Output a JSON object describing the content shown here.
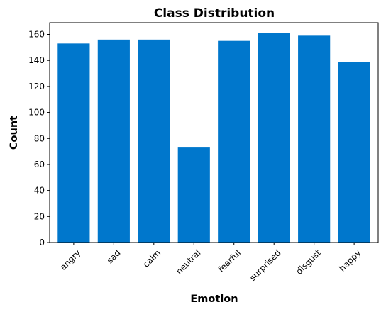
{
  "chart_data": {
    "type": "bar",
    "title": "Class Distribution",
    "xlabel": "Emotion",
    "ylabel": "Count",
    "categories": [
      "angry",
      "sad",
      "calm",
      "neutral",
      "fearful",
      "surprised",
      "disgust",
      "happy"
    ],
    "values": [
      153,
      156,
      156,
      73,
      155,
      161,
      159,
      139
    ],
    "ylim": [
      0,
      169
    ],
    "yticks": [
      0,
      20,
      40,
      60,
      80,
      100,
      120,
      140,
      160
    ],
    "bar_color": "#0077cc",
    "grid": false,
    "legend": "none"
  }
}
